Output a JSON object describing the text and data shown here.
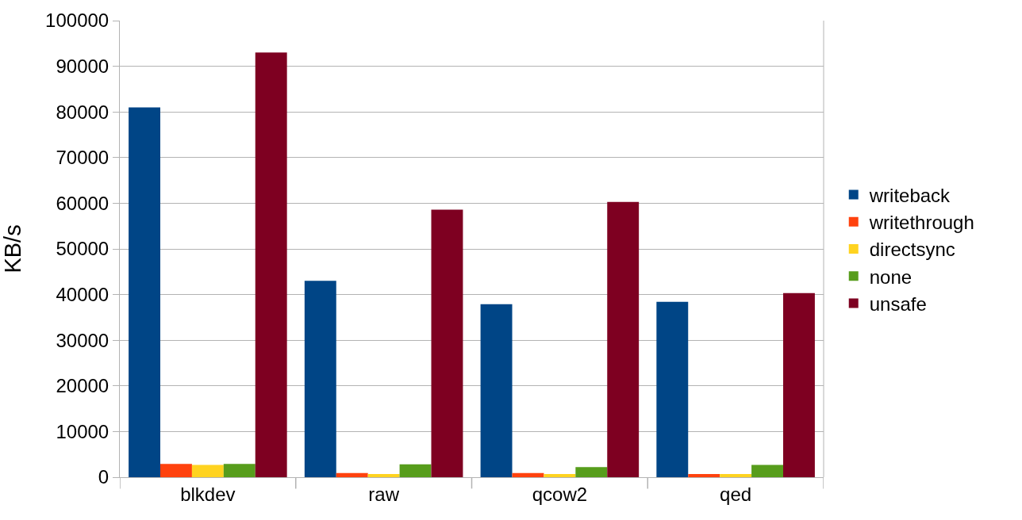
{
  "chart_data": {
    "type": "bar",
    "ylabel": "KB/s",
    "categories": [
      "blkdev",
      "raw",
      "qcow2",
      "qed"
    ],
    "series": [
      {
        "name": "writeback",
        "color": "#004586",
        "values": [
          81000,
          43000,
          37900,
          38400
        ]
      },
      {
        "name": "writethrough",
        "color": "#ff420e",
        "values": [
          2900,
          900,
          900,
          700
        ]
      },
      {
        "name": "directsync",
        "color": "#ffd320",
        "values": [
          2700,
          700,
          700,
          700
        ]
      },
      {
        "name": "none",
        "color": "#579d1c",
        "values": [
          2900,
          2800,
          2200,
          2700
        ]
      },
      {
        "name": "unsafe",
        "color": "#7e0021",
        "values": [
          93000,
          58600,
          60300,
          40300
        ]
      }
    ],
    "ylim": [
      0,
      100000
    ],
    "yticks": [
      0,
      10000,
      20000,
      30000,
      40000,
      50000,
      60000,
      70000,
      80000,
      90000,
      100000
    ],
    "grid": "y",
    "legend": "right"
  }
}
